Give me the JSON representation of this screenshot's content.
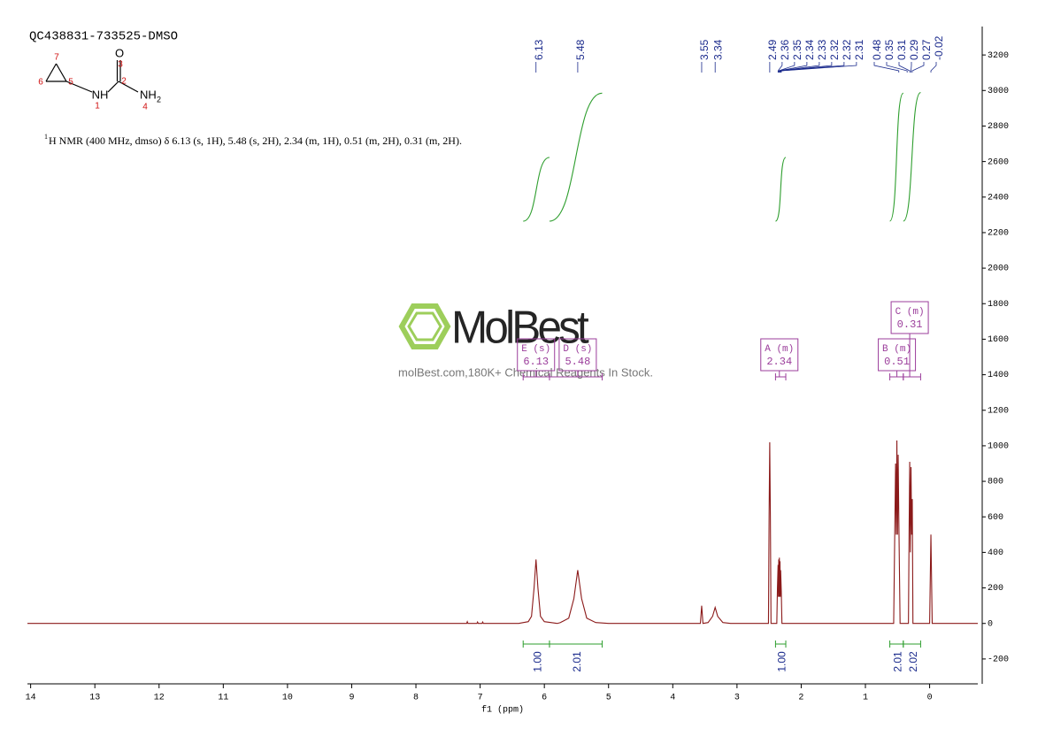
{
  "header": {
    "title": "QC438831-733525-DMSO",
    "nmr_sup": "1",
    "nmr_text": "H NMR (400 MHz, dmso) δ 6.13 (s, 1H), 5.48 (s, 2H), 2.34 (m, 1H), 0.51 (m, 2H), 0.31 (m, 2H)."
  },
  "structure": {
    "atoms": [
      "O",
      "NH",
      "NH"
    ],
    "h_count": "2",
    "numbers": [
      "7",
      "6",
      "5",
      "1",
      "2",
      "3",
      "4"
    ]
  },
  "watermark": {
    "brand": "MolBest",
    "tagline": "molBest.com,180K+ Chemical Reagents In Stock."
  },
  "chart_data": {
    "type": "line",
    "x_label": "f1 (ppm)",
    "xlim": [
      14.05,
      -0.75
    ],
    "xticks": [
      14,
      13,
      12,
      11,
      10,
      9,
      8,
      7,
      6,
      5,
      4,
      3,
      2,
      1,
      0
    ],
    "ylim": [
      -340,
      3360
    ],
    "yticks": [
      -200,
      0,
      200,
      400,
      600,
      800,
      1000,
      1200,
      1400,
      1600,
      1800,
      2000,
      2200,
      2400,
      2600,
      2800,
      3000,
      3200
    ],
    "color": "#8b1a1a",
    "x": [
      14.05,
      7.21,
      7.2,
      7.19,
      7.05,
      7.04,
      7.03,
      6.97,
      6.96,
      6.95,
      6.4,
      6.25,
      6.2,
      6.16,
      6.13,
      6.1,
      6.06,
      6.0,
      5.8,
      5.75,
      5.62,
      5.54,
      5.48,
      5.42,
      5.34,
      5.2,
      5.0,
      3.57,
      3.55,
      3.53,
      3.45,
      3.38,
      3.34,
      3.3,
      3.22,
      3.1,
      2.51,
      2.5,
      2.49,
      2.48,
      2.47,
      2.38,
      2.37,
      2.36,
      2.355,
      2.35,
      2.345,
      2.34,
      2.335,
      2.33,
      2.325,
      2.32,
      2.31,
      2.3,
      0.56,
      0.54,
      0.53,
      0.52,
      0.51,
      0.5,
      0.49,
      0.48,
      0.46,
      0.33,
      0.32,
      0.31,
      0.3,
      0.29,
      0.28,
      0.27,
      0.26,
      0.0,
      -0.02,
      -0.04,
      -0.75
    ],
    "values": [
      0,
      0,
      10,
      0,
      0,
      8,
      0,
      0,
      8,
      0,
      0,
      10,
      40,
      200,
      360,
      200,
      40,
      10,
      0,
      5,
      30,
      140,
      300,
      140,
      30,
      5,
      0,
      0,
      100,
      0,
      5,
      40,
      90,
      40,
      5,
      0,
      0,
      600,
      1020,
      600,
      0,
      0,
      200,
      330,
      150,
      360,
      150,
      370,
      150,
      350,
      150,
      300,
      180,
      0,
      0,
      600,
      900,
      500,
      1030,
      500,
      950,
      600,
      0,
      0,
      500,
      910,
      400,
      880,
      500,
      700,
      0,
      0,
      500,
      0,
      0
    ],
    "peak_labels": [
      6.13,
      5.48,
      3.55,
      3.34,
      2.49,
      2.36,
      2.35,
      2.34,
      2.33,
      2.32,
      2.32,
      2.31,
      0.48,
      0.35,
      0.31,
      0.29,
      0.27,
      -0.02
    ],
    "label_color": "#1a2a8c",
    "integrals": {
      "color": "#2e9e2e",
      "ranges": [
        [
          6.33,
          5.92
        ],
        [
          5.92,
          5.1
        ],
        [
          2.4,
          2.24
        ],
        [
          0.62,
          0.41
        ],
        [
          0.41,
          0.14
        ]
      ],
      "values": [
        1,
        2.01,
        1,
        2.01,
        2.02
      ],
      "value_labels": [
        "1.00",
        "2.01",
        "1.00",
        "2.01",
        "2.02"
      ]
    },
    "multiplet_color": "#9b3d9b",
    "multiplets": [
      {
        "label": "E (s)",
        "shift": 6.13,
        "range": [
          6.33,
          5.92
        ]
      },
      {
        "label": "D (s)",
        "shift": 5.48,
        "range": [
          5.92,
          5.1
        ]
      },
      {
        "label": "A (m)",
        "shift": 2.34,
        "range": [
          2.4,
          2.24
        ]
      },
      {
        "label": "B (m)",
        "shift": 0.51,
        "range": [
          0.62,
          0.41
        ]
      },
      {
        "label": "C (m)",
        "shift": 0.31,
        "range": [
          0.41,
          0.14
        ]
      }
    ]
  }
}
